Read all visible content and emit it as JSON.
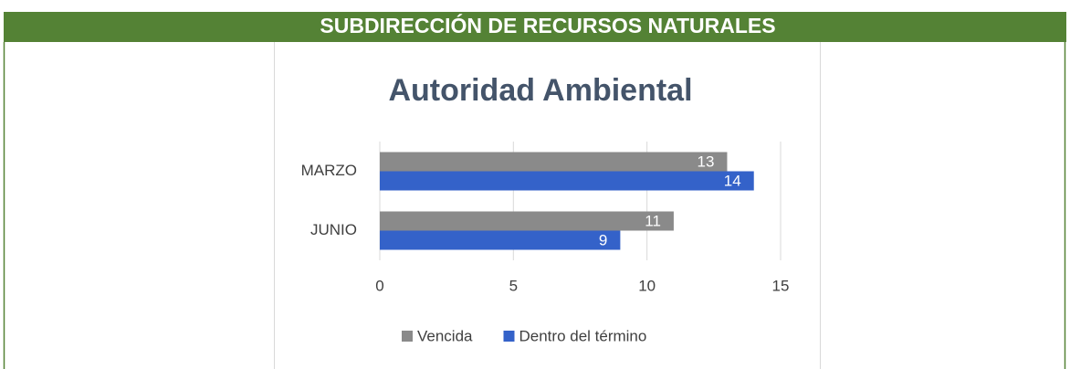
{
  "header": {
    "title": "SUBDIRECCIÓN DE RECURSOS NATURALES"
  },
  "chart_data": {
    "type": "bar",
    "orientation": "horizontal",
    "title": "Autoridad Ambiental",
    "categories": [
      "MARZO",
      "JUNIO"
    ],
    "series": [
      {
        "name": "Vencida",
        "color": "#8a8a8a",
        "values": [
          13,
          11
        ]
      },
      {
        "name": "Dentro del término",
        "color": "#3462c9",
        "values": [
          14,
          9
        ]
      }
    ],
    "xlim": [
      0,
      15
    ],
    "xticks": [
      0,
      5,
      10,
      15
    ],
    "grid": true,
    "legend": "bottom"
  }
}
